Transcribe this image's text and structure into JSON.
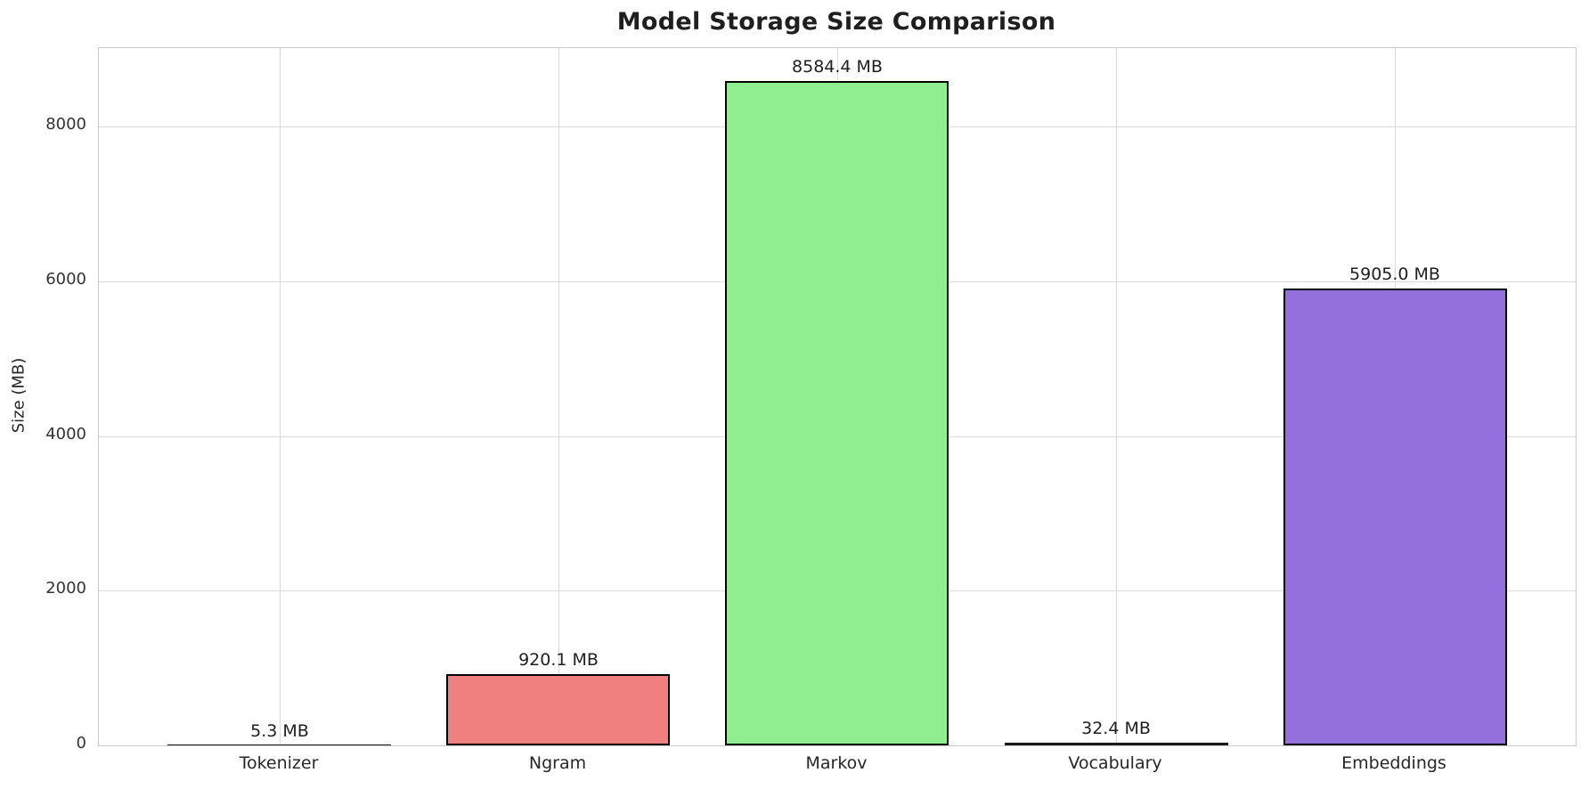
{
  "chart_data": {
    "type": "bar",
    "title": "Model Storage Size Comparison",
    "xlabel": "",
    "ylabel": "Size (MB)",
    "categories": [
      "Tokenizer",
      "Ngram",
      "Markov",
      "Vocabulary",
      "Embeddings"
    ],
    "values": [
      5.3,
      920.1,
      8584.4,
      32.4,
      5905.0
    ],
    "bar_labels": [
      "5.3 MB",
      "920.1 MB",
      "8584.4 MB",
      "32.4 MB",
      "5905.0 MB"
    ],
    "bar_colors": [
      "#1a1a1a",
      "#F08080",
      "#90EE90",
      "#1a1a1a",
      "#9370DB"
    ],
    "bar_edge_color": "#000000",
    "yticks": [
      0,
      2000,
      4000,
      6000,
      8000
    ],
    "ylim": [
      0,
      9014
    ],
    "grid": "on",
    "legend": "none",
    "colors": {
      "background": "#ffffff",
      "grid": "#d9d9d9",
      "spine": "#cccccc",
      "text": "#262626",
      "title": "#1f1f1f"
    }
  }
}
